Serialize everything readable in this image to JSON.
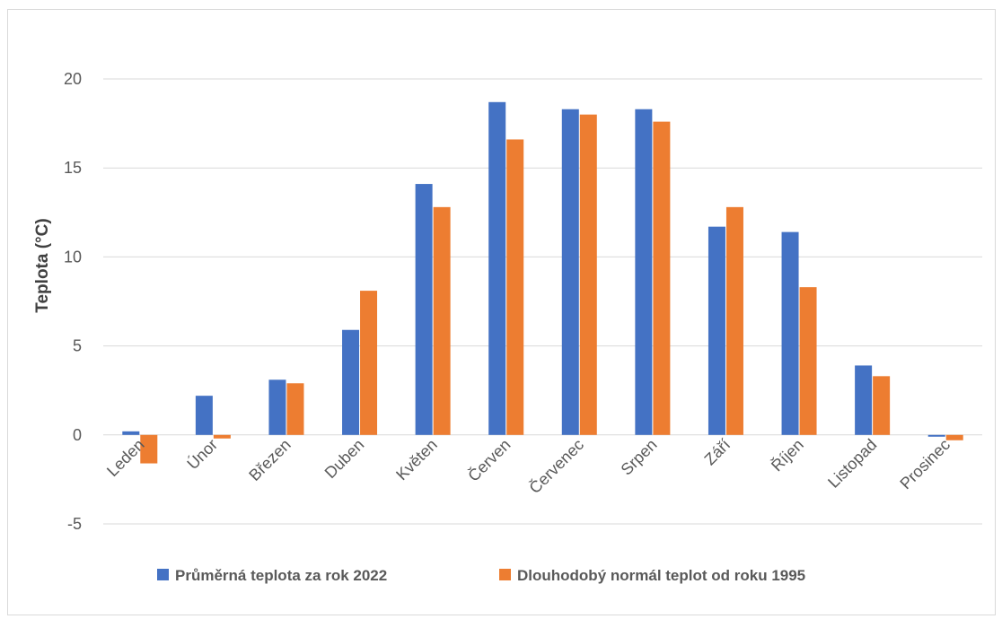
{
  "chart_data": {
    "type": "bar",
    "title": "",
    "xlabel": "",
    "ylabel": "Teplota (°C)",
    "ylim": [
      -5,
      20
    ],
    "yticks": [
      -5,
      0,
      5,
      10,
      15,
      20
    ],
    "yticks_labels": [
      "-5",
      "0",
      "5",
      "10",
      "15",
      "20"
    ],
    "grid": true,
    "legend_position": "bottom",
    "categories": [
      "Leden",
      "Únor",
      "Březen",
      "Duben",
      "Květen",
      "Červen",
      "Červenec",
      "Srpen",
      "Září",
      "Říjen",
      "Listopad",
      "Prosinec"
    ],
    "series": [
      {
        "name": "Průměrná teplota za rok 2022",
        "color": "#4472c4",
        "values": [
          0.2,
          2.2,
          3.1,
          5.9,
          14.1,
          18.7,
          18.3,
          18.3,
          11.7,
          11.4,
          3.9,
          -0.1
        ]
      },
      {
        "name": "Dlouhodobý normál teplot od roku 1995",
        "color": "#ed7d31",
        "values": [
          -1.6,
          -0.2,
          2.9,
          8.1,
          12.8,
          16.6,
          18.0,
          17.6,
          12.8,
          8.3,
          3.3,
          -0.3
        ]
      }
    ]
  }
}
